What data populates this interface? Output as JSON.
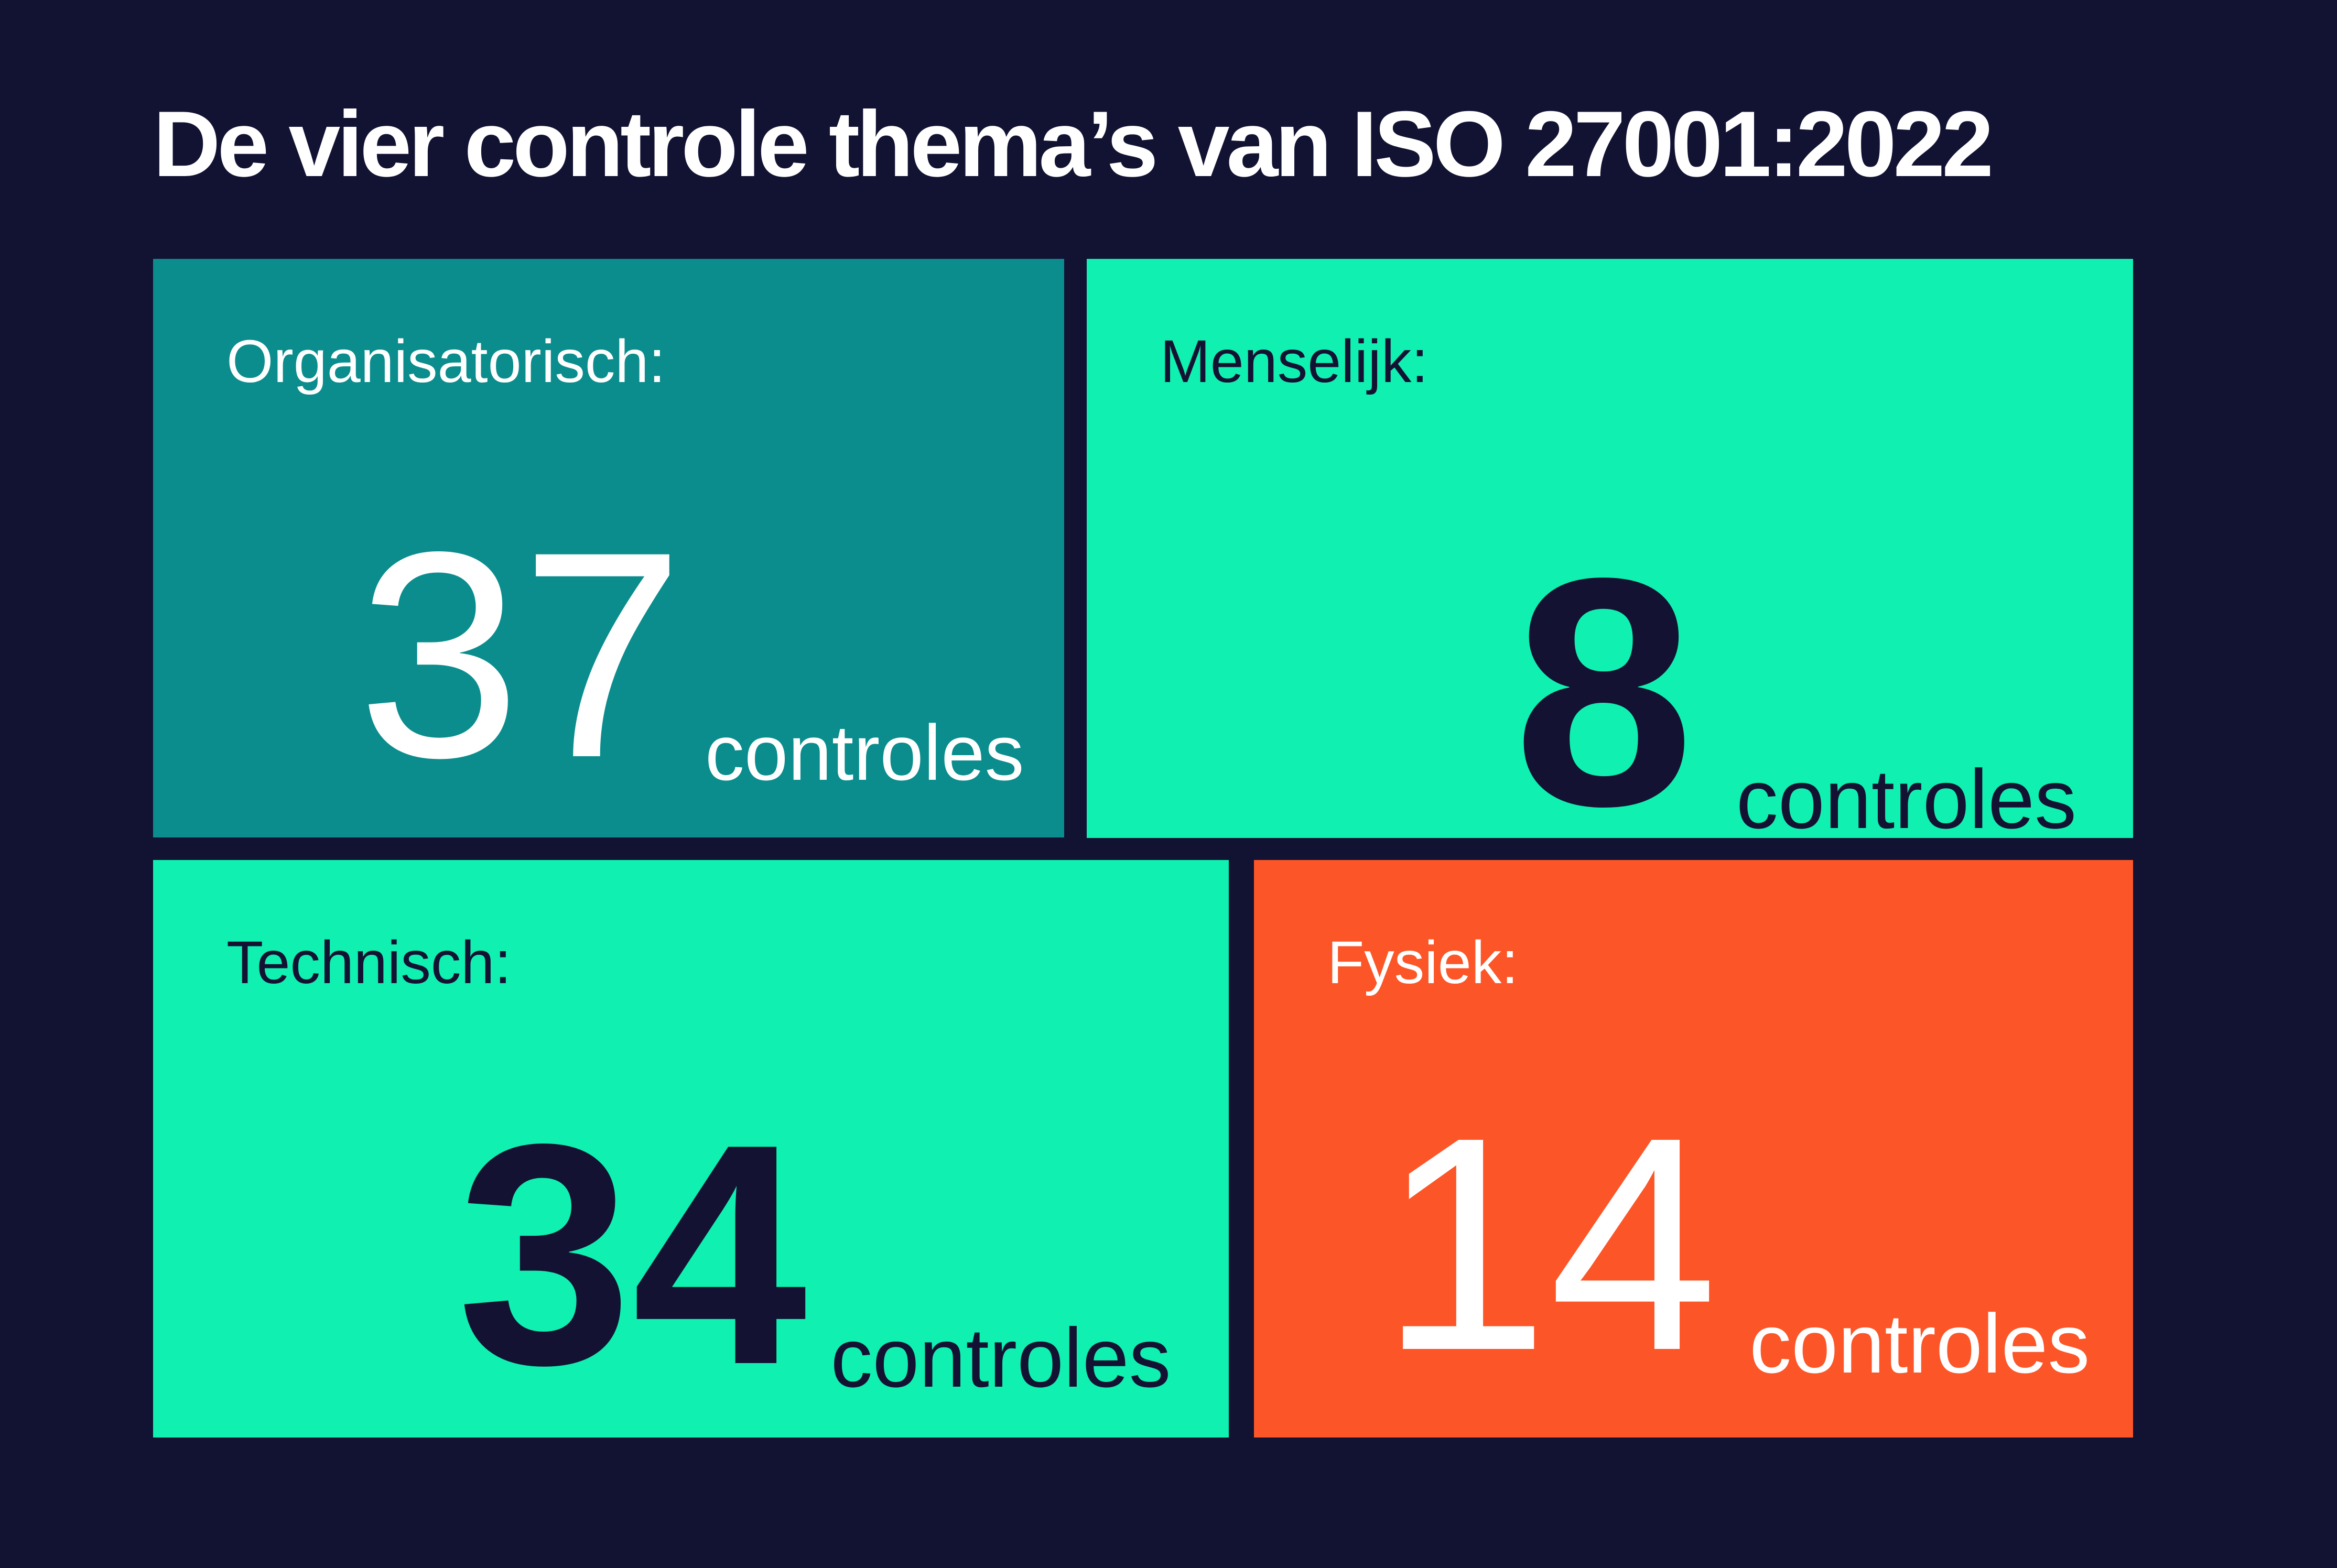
{
  "title": "De vier controle thema’s van ISO 27001:2022",
  "colors": {
    "background": "#121233",
    "teal": "#0B8D8D",
    "mint": "#10F0B0",
    "orange": "#FC5628",
    "navy_text": "#131233",
    "white_text": "#FFFFFF"
  },
  "cards": [
    {
      "id": "organisatorisch",
      "label": "Organisatorisch:",
      "count": "37",
      "unit": "controles",
      "bg": "#0B8D8D",
      "fg": "#FFFFFF"
    },
    {
      "id": "menselijk",
      "label": "Menselijk:",
      "count": "8",
      "unit": "controles",
      "bg": "#10F0B0",
      "fg": "#131233"
    },
    {
      "id": "technisch",
      "label": "Technisch:",
      "count": "34",
      "unit": "controles",
      "bg": "#10F0B0",
      "fg": "#131233"
    },
    {
      "id": "fysiek",
      "label": "Fysiek:",
      "count": "14",
      "unit": "controles",
      "bg": "#FC5628",
      "fg": "#FFFFFF"
    }
  ],
  "chart_data": {
    "type": "table",
    "title": "De vier controle thema’s van ISO 27001:2022",
    "categories": [
      "Organisatorisch",
      "Menselijk",
      "Technisch",
      "Fysiek"
    ],
    "values": [
      37,
      8,
      34,
      14
    ],
    "unit": "controles",
    "legend_position": "none",
    "grid": false
  }
}
